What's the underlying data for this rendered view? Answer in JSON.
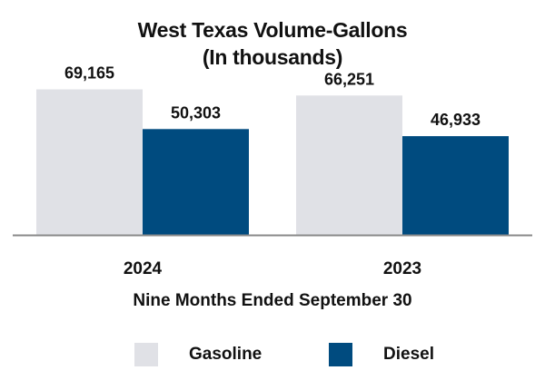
{
  "chart_data": {
    "type": "bar",
    "title": "West Texas Volume-Gallons",
    "subtitle": "(In thousands)",
    "categories": [
      "2024",
      "2023"
    ],
    "series": [
      {
        "name": "Gasoline",
        "values": [
          69165,
          66251
        ],
        "labels": [
          "69,165",
          "66,251"
        ],
        "color": "#e0e1e6"
      },
      {
        "name": "Diesel",
        "values": [
          50303,
          46933
        ],
        "labels": [
          "50,303",
          "46,933"
        ],
        "color": "#004b7f"
      }
    ],
    "xlabel": "Nine Months Ended September 30",
    "ylabel": "",
    "ylim": [
      0,
      75000
    ],
    "grid": false,
    "legend": "bottom"
  }
}
